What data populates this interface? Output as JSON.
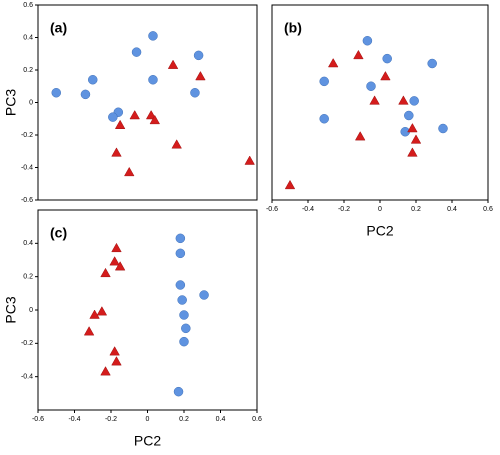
{
  "chart_data": [
    {
      "type": "scatter",
      "title": "(a)",
      "y_label": "PC3",
      "xlim": [
        -0.6,
        0.6
      ],
      "ylim": [
        -0.6,
        0.6
      ],
      "yticks": [
        -0.6,
        -0.4,
        -0.2,
        0,
        0.2,
        0.4,
        0.6
      ],
      "series": [
        {
          "color": "#5f93e0",
          "marker": "circle",
          "x": [
            0.03,
            -0.06,
            -0.3,
            -0.5,
            -0.34,
            0.03,
            0.28,
            0.26,
            -0.16,
            -0.19
          ],
          "values": [
            0.41,
            0.31,
            0.14,
            0.06,
            0.05,
            0.14,
            0.29,
            0.06,
            -0.06,
            -0.09
          ]
        },
        {
          "color": "#d41c1c",
          "marker": "triangle",
          "x": [
            0.14,
            0.29,
            -0.07,
            0.02,
            0.04,
            -0.15,
            -0.17,
            0.16,
            -0.1,
            0.56
          ],
          "values": [
            0.23,
            0.16,
            -0.08,
            -0.08,
            -0.11,
            -0.14,
            -0.31,
            -0.26,
            -0.43,
            -0.36
          ]
        }
      ]
    },
    {
      "type": "scatter",
      "title": "(b)",
      "x_label": "PC2",
      "xlim": [
        -0.6,
        0.6
      ],
      "ylim": [
        -0.6,
        0.6
      ],
      "xticks": [
        -0.6,
        -0.4,
        -0.2,
        0,
        0.2,
        0.4,
        0.6
      ],
      "series": [
        {
          "color": "#5f93e0",
          "marker": "circle",
          "x": [
            -0.07,
            -0.31,
            -0.05,
            0.04,
            0.29,
            -0.31,
            0.19,
            0.16,
            0.14,
            0.35
          ],
          "values": [
            0.38,
            0.13,
            0.1,
            0.27,
            0.24,
            -0.1,
            0.01,
            -0.08,
            -0.18,
            -0.16
          ]
        },
        {
          "color": "#d41c1c",
          "marker": "triangle",
          "x": [
            -0.12,
            -0.26,
            0.03,
            -0.03,
            0.13,
            0.18,
            0.2,
            0.18,
            -0.11,
            -0.5
          ],
          "values": [
            0.29,
            0.24,
            0.16,
            0.01,
            0.01,
            -0.16,
            -0.23,
            -0.31,
            -0.21,
            -0.51
          ]
        }
      ]
    },
    {
      "type": "scatter",
      "title": "(c)",
      "x_label": "PC2",
      "y_label": "PC3",
      "xlim": [
        -0.6,
        0.6
      ],
      "ylim": [
        -0.6,
        0.6
      ],
      "xticks": [
        -0.6,
        -0.4,
        -0.2,
        0,
        0.2,
        0.4,
        0.6
      ],
      "yticks": [
        -0.4,
        -0.2,
        0,
        0.2,
        0.4
      ],
      "series": [
        {
          "color": "#5f93e0",
          "marker": "circle",
          "x": [
            0.18,
            0.18,
            0.31,
            0.18,
            0.19,
            0.2,
            0.21,
            0.2,
            0.17
          ],
          "values": [
            0.43,
            0.34,
            0.09,
            0.15,
            0.06,
            -0.03,
            -0.11,
            -0.19,
            -0.49
          ]
        },
        {
          "color": "#d41c1c",
          "marker": "triangle",
          "x": [
            -0.17,
            -0.18,
            -0.15,
            -0.23,
            -0.25,
            -0.29,
            -0.32,
            -0.18,
            -0.17,
            -0.23
          ],
          "values": [
            0.37,
            0.29,
            0.26,
            0.22,
            -0.01,
            -0.03,
            -0.13,
            -0.25,
            -0.31,
            -0.37
          ]
        }
      ]
    }
  ]
}
